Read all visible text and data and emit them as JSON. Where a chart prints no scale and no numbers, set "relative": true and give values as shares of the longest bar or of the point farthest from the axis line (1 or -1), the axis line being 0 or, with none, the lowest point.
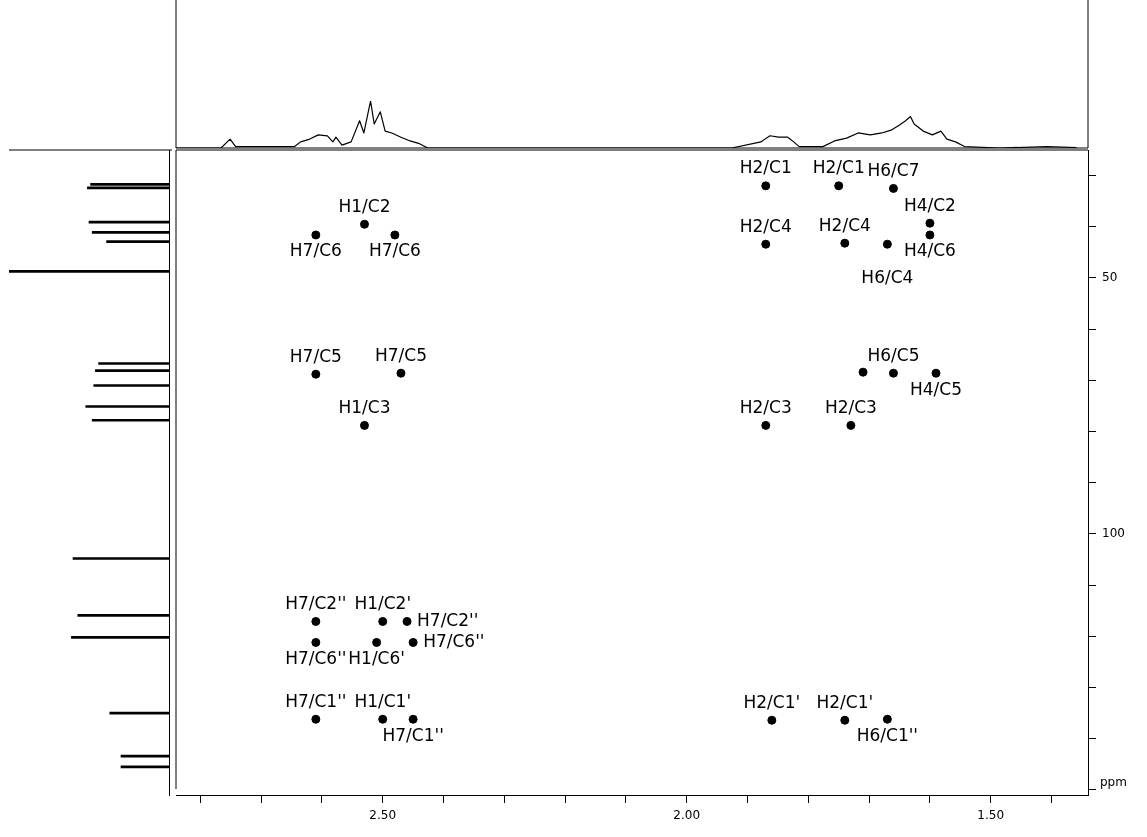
{
  "chart_data": [
    {
      "type": "line",
      "relative": true,
      "color": "#000000",
      "xlim": [
        2.84,
        1.34
      ],
      "tick_labels": false,
      "x": [
        2.84,
        2.766,
        2.751,
        2.742,
        2.645,
        2.635,
        2.62,
        2.606,
        2.591,
        2.582,
        2.577,
        2.567,
        2.552,
        2.538,
        2.531,
        2.52,
        2.514,
        2.504,
        2.496,
        2.485,
        2.47,
        2.455,
        2.441,
        2.426,
        1.926,
        1.878,
        1.863,
        1.849,
        1.834,
        1.824,
        1.815,
        1.776,
        1.757,
        1.737,
        1.718,
        1.698,
        1.679,
        1.664,
        1.65,
        1.64,
        1.632,
        1.626,
        1.611,
        1.596,
        1.582,
        1.572,
        1.558,
        1.543,
        1.485,
        1.407,
        1.359
      ],
      "values": [
        0,
        0,
        0.19,
        0.03,
        0.03,
        0.13,
        0.19,
        0.28,
        0.26,
        0.13,
        0.23,
        0.06,
        0.13,
        0.58,
        0.32,
        1,
        0.51,
        0.77,
        0.36,
        0.32,
        0.23,
        0.15,
        0.1,
        0,
        0,
        0.13,
        0.26,
        0.23,
        0.23,
        0.13,
        0.03,
        0.03,
        0.15,
        0.21,
        0.32,
        0.28,
        0.32,
        0.38,
        0.49,
        0.58,
        0.67,
        0.51,
        0.36,
        0.28,
        0.36,
        0.19,
        0.13,
        0.03,
        0,
        0.03,
        0.01
      ]
    },
    {
      "type": "bar",
      "orientation": "horizontal",
      "relative": true,
      "color": "#000000",
      "ylim": [
        151,
        25
      ],
      "tick_labels": false,
      "x": [
        31.7,
        32.4,
        39.1,
        41.1,
        42.9,
        48.7,
        66.7,
        68.1,
        71.0,
        75.1,
        77.8,
        104.8,
        115.9,
        120.2,
        135.0,
        143.4,
        145.5
      ],
      "values": [
        0.49,
        0.51,
        0.5,
        0.48,
        0.39,
        1,
        0.44,
        0.46,
        0.47,
        0.52,
        0.48,
        0.6,
        0.57,
        0.61,
        0.37,
        0.3,
        0.3
      ]
    },
    {
      "type": "scatter",
      "marker": "circle",
      "ylabel": "ppm",
      "xlim": [
        2.84,
        1.34
      ],
      "ylim": [
        151,
        25
      ],
      "xticks": [
        {
          "value": 2.8,
          "label": null
        },
        {
          "value": 2.7,
          "label": null
        },
        {
          "value": 2.6,
          "label": null
        },
        {
          "value": 2.5,
          "label": "2.50"
        },
        {
          "value": 2.4,
          "label": null
        },
        {
          "value": 2.3,
          "label": null
        },
        {
          "value": 2.2,
          "label": null
        },
        {
          "value": 2.1,
          "label": null
        },
        {
          "value": 2.0,
          "label": "2.00"
        },
        {
          "value": 1.9,
          "label": null
        },
        {
          "value": 1.8,
          "label": null
        },
        {
          "value": 1.7,
          "label": null
        },
        {
          "value": 1.6,
          "label": null
        },
        {
          "value": 1.5,
          "label": "1.50"
        },
        {
          "value": 1.4,
          "label": null
        }
      ],
      "yticks": [
        {
          "value": 30,
          "label": null
        },
        {
          "value": 40,
          "label": null
        },
        50,
        {
          "value": 60,
          "label": null
        },
        {
          "value": 70,
          "label": null
        },
        {
          "value": 80,
          "label": null
        },
        {
          "value": 90,
          "label": null
        },
        100,
        {
          "value": 110,
          "label": null
        },
        {
          "value": 120,
          "label": null
        },
        {
          "value": 130,
          "label": null
        },
        {
          "value": 140,
          "label": null
        },
        {
          "value": 150,
          "label": null
        }
      ],
      "series": [
        {
          "color": "#000000",
          "x": [
            2.53,
            2.61,
            2.48,
            2.61,
            2.47,
            2.53,
            1.87,
            1.75,
            1.66,
            1.6,
            1.6,
            1.87,
            1.74,
            1.67,
            1.71,
            1.66,
            1.59,
            1.87,
            1.73,
            2.61,
            2.5,
            2.46,
            2.61,
            2.51,
            2.45,
            2.61,
            2.5,
            2.45,
            1.86,
            1.74,
            1.67
          ],
          "values": [
            39.5,
            41.6,
            41.6,
            68.8,
            68.6,
            78.8,
            32.0,
            32.0,
            32.5,
            39.3,
            41.6,
            43.4,
            43.2,
            43.4,
            68.4,
            68.6,
            68.6,
            78.8,
            78.8,
            117.1,
            117.1,
            117.1,
            121.2,
            121.2,
            121.2,
            136.2,
            136.2,
            136.2,
            136.4,
            136.4,
            136.2
          ]
        }
      ],
      "annotations": [
        {
          "text": "H1/C2",
          "x": 2.53,
          "y": 39.5
        },
        {
          "text": "H7/C6",
          "x": 2.61,
          "y": 41.6
        },
        {
          "text": "H7/C6",
          "x": 2.48,
          "y": 41.6
        },
        {
          "text": "H7/C5",
          "x": 2.61,
          "y": 68.8
        },
        {
          "text": "H7/C5",
          "x": 2.47,
          "y": 68.6
        },
        {
          "text": "H1/C3",
          "x": 2.53,
          "y": 78.8
        },
        {
          "text": "H2/C1",
          "x": 1.87,
          "y": 32.0
        },
        {
          "text": "H2/C1",
          "x": 1.75,
          "y": 32.0
        },
        {
          "text": "H6/C7",
          "x": 1.66,
          "y": 32.5
        },
        {
          "text": "H4/C2",
          "x": 1.6,
          "y": 39.3
        },
        {
          "text": "H4/C6",
          "x": 1.6,
          "y": 41.6
        },
        {
          "text": "H2/C4",
          "x": 1.87,
          "y": 43.4
        },
        {
          "text": "H2/C4",
          "x": 1.74,
          "y": 43.2
        },
        {
          "text": "H6/C4",
          "x": 1.67,
          "y": 43.4
        },
        {
          "text": "H6/C5",
          "x": 1.66,
          "y": 68.6
        },
        {
          "text": "H4/C5",
          "x": 1.59,
          "y": 68.6
        },
        {
          "text": "H2/C3",
          "x": 1.87,
          "y": 78.8
        },
        {
          "text": "H2/C3",
          "x": 1.73,
          "y": 78.8
        },
        {
          "text": "H7/C2''",
          "x": 2.61,
          "y": 117.1
        },
        {
          "text": "H1/C2'",
          "x": 2.5,
          "y": 117.1
        },
        {
          "text": "H7/C2''",
          "x": 2.46,
          "y": 117.1
        },
        {
          "text": "H7/C6''",
          "x": 2.61,
          "y": 121.2
        },
        {
          "text": "H1/C6'",
          "x": 2.51,
          "y": 121.2
        },
        {
          "text": "H7/C6''",
          "x": 2.45,
          "y": 121.2
        },
        {
          "text": "H7/C1''",
          "x": 2.61,
          "y": 136.2
        },
        {
          "text": "H1/C1'",
          "x": 2.5,
          "y": 136.2
        },
        {
          "text": "H7/C1''",
          "x": 2.45,
          "y": 136.2
        },
        {
          "text": "H2/C1'",
          "x": 1.86,
          "y": 136.4
        },
        {
          "text": "H2/C1'",
          "x": 1.74,
          "y": 136.4
        },
        {
          "text": "H6/C1''",
          "x": 1.67,
          "y": 136.2
        }
      ]
    }
  ]
}
